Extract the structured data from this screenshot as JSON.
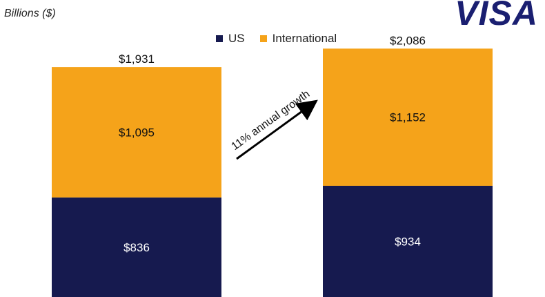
{
  "header": {
    "title": "",
    "subtitle": "Billions ($)",
    "logo_text": "VISA"
  },
  "colors": {
    "us": "#161a4f",
    "international": "#f5a31a",
    "logo": "#1a1f71"
  },
  "chart_data": {
    "type": "bar",
    "stacked": true,
    "categories": [
      "",
      ""
    ],
    "series": [
      {
        "name": "US",
        "values": [
          836,
          934
        ],
        "value_labels": [
          "$836",
          "$934"
        ],
        "color": "#161a4f"
      },
      {
        "name": "International",
        "values": [
          1095,
          1152
        ],
        "value_labels": [
          "$1,095",
          "$1,152"
        ],
        "color": "#f5a31a"
      }
    ],
    "totals": [
      1931,
      2086
    ],
    "total_labels": [
      "$1,931",
      "$2,086"
    ],
    "annotation": "11% annual growth",
    "ylabel": "Billions ($)",
    "legend_position": "top-center",
    "grid": false
  }
}
